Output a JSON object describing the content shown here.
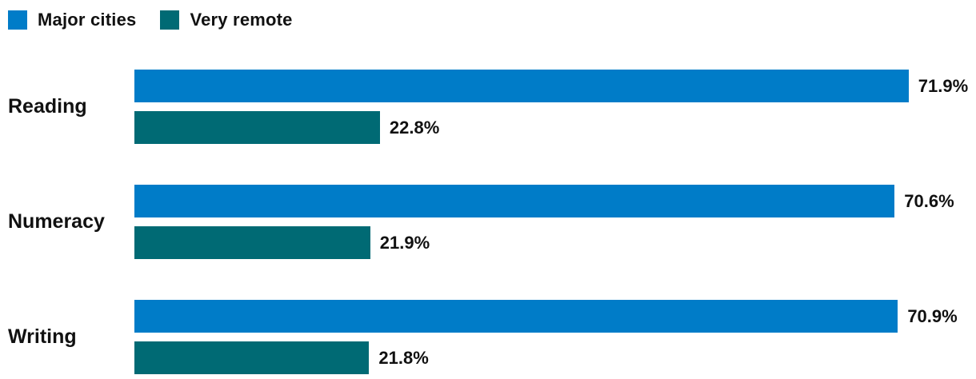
{
  "legend": {
    "items": [
      {
        "label": "Major cities",
        "color": "#007CC8"
      },
      {
        "label": "Very remote",
        "color": "#006A74"
      }
    ]
  },
  "chart_data": {
    "type": "bar",
    "orientation": "horizontal",
    "title": "",
    "xlabel": "",
    "ylabel": "",
    "categories": [
      "Reading",
      "Numeracy",
      "Writing"
    ],
    "series": [
      {
        "name": "Major cities",
        "color": "#007CC8",
        "values": [
          71.9,
          70.6,
          70.9
        ],
        "labels": [
          "71.9%",
          "70.6%",
          "70.9%"
        ]
      },
      {
        "name": "Very remote",
        "color": "#006A74",
        "values": [
          22.8,
          21.9,
          21.8
        ],
        "labels": [
          "22.8%",
          "21.9%",
          "21.8%"
        ]
      }
    ],
    "value_suffix": "%",
    "xlim": [
      0,
      78
    ],
    "grid": false,
    "axes_visible": false,
    "legend_position": "top-left"
  }
}
